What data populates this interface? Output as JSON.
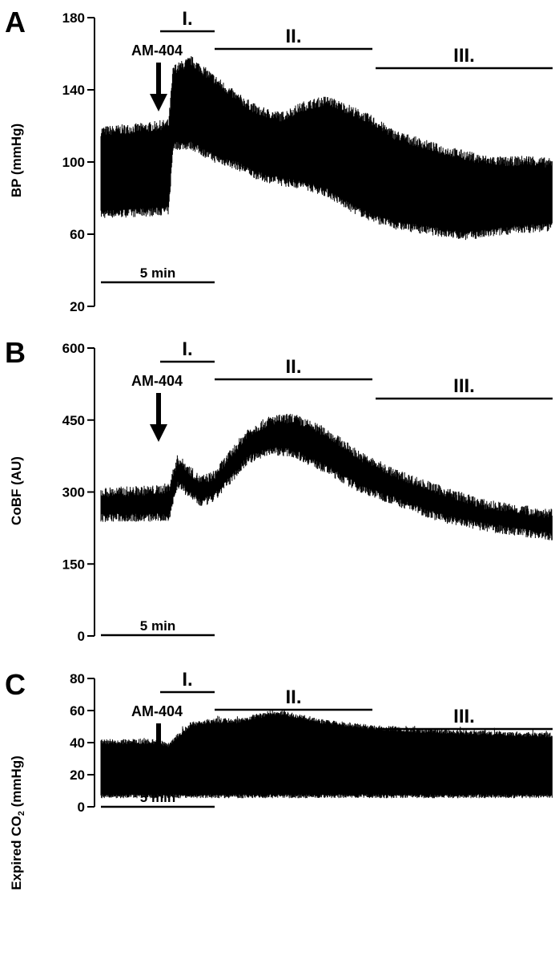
{
  "chart_data": [
    {
      "panel": "A",
      "type": "line",
      "ylabel": "BP (mmHg)",
      "ylim": [
        20,
        180
      ],
      "yticks": [
        20,
        60,
        100,
        140,
        180
      ],
      "drug": "AM-404",
      "scale_bar": "5 min",
      "phases": [
        "I.",
        "II.",
        "III."
      ],
      "x_min": [
        0,
        3,
        3.2,
        5,
        10,
        15,
        20
      ],
      "series": [
        {
          "kind": "upper",
          "x_min": [
            0,
            2,
            3,
            3.2,
            4,
            5,
            6,
            7,
            8,
            9,
            10,
            11,
            12,
            13,
            15,
            16,
            17,
            18,
            19,
            20
          ],
          "values": [
            116,
            118,
            120,
            150,
            155,
            145,
            135,
            127,
            124,
            130,
            133,
            128,
            122,
            114,
            106,
            103,
            100,
            99,
            100,
            98
          ]
        },
        {
          "kind": "lower",
          "x_min": [
            0,
            2,
            3,
            3.2,
            4,
            5,
            6,
            7,
            8,
            9,
            10,
            11,
            12,
            13,
            15,
            16,
            17,
            18,
            19,
            20
          ],
          "values": [
            72,
            73,
            74,
            110,
            110,
            103,
            99,
            93,
            90,
            88,
            84,
            76,
            70,
            66,
            62,
            60,
            61,
            63,
            64,
            65
          ]
        }
      ]
    },
    {
      "panel": "B",
      "type": "line",
      "ylabel": "CoBF (AU)",
      "ylim": [
        0,
        600
      ],
      "yticks": [
        0,
        150,
        300,
        450,
        600
      ],
      "drug": "AM-404",
      "scale_bar": "5 min",
      "phases": [
        "I.",
        "II.",
        "III."
      ],
      "series": [
        {
          "kind": "upper",
          "x_min": [
            0,
            2.5,
            3,
            3.4,
            4.4,
            5,
            6.5,
            7.5,
            8.5,
            10,
            11.5,
            13,
            15,
            17,
            20
          ],
          "values": [
            295,
            300,
            305,
            365,
            320,
            330,
            420,
            445,
            450,
            420,
            370,
            335,
            300,
            270,
            250
          ]
        },
        {
          "kind": "lower",
          "x_min": [
            0,
            2.5,
            3,
            3.4,
            4.4,
            5,
            6.5,
            7.5,
            8.5,
            10,
            11.5,
            13,
            15,
            17,
            20
          ],
          "values": [
            250,
            250,
            250,
            320,
            280,
            290,
            370,
            390,
            385,
            350,
            310,
            285,
            250,
            230,
            210
          ]
        }
      ]
    },
    {
      "panel": "C",
      "type": "line",
      "ylabel_prefix": "Expired CO",
      "ylabel_sub": "2",
      "ylabel_suffix": " (mmHg)",
      "ylim": [
        0,
        80
      ],
      "yticks": [
        0,
        20,
        40,
        60,
        80
      ],
      "drug": "AM-404",
      "scale_bar": "5 min",
      "phases": [
        "I.",
        "II.",
        "III."
      ],
      "series": [
        {
          "kind": "upper",
          "x_min": [
            0,
            2.5,
            3,
            3.2,
            4,
            5,
            6,
            7,
            7.5,
            8,
            9,
            10,
            12,
            14,
            16,
            18,
            20
          ],
          "values": [
            40,
            40,
            38,
            41,
            51,
            53,
            53,
            56,
            58,
            58,
            55,
            52,
            49,
            47,
            46,
            45,
            44
          ]
        },
        {
          "kind": "lower",
          "x_min": [
            0,
            20
          ],
          "values": [
            7,
            7
          ]
        }
      ]
    }
  ]
}
